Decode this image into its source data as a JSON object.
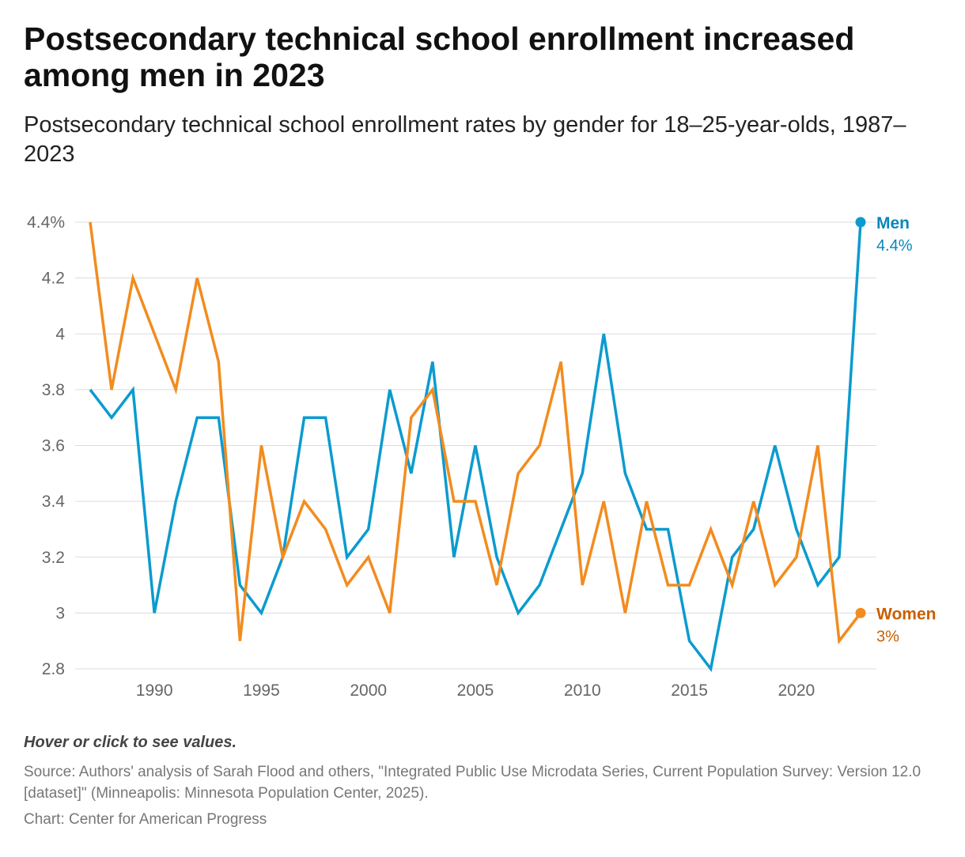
{
  "title": "Postsecondary technical school enrollment increased among men in 2023",
  "subtitle": "Postsecondary technical school enrollment rates by gender for 18–25-year-olds, 1987–2023",
  "hint": "Hover or click to see values.",
  "source": "Source: Authors' analysis of Sarah Flood and others, \"Integrated Public Use Microdata Series, Current Population Survey: Version 12.0 [dataset]\" (Minneapolis: Minnesota Population Center, 2025).",
  "credit": "Chart: Center for American Progress",
  "chart_data": {
    "type": "line",
    "x": [
      1987,
      1988,
      1989,
      1990,
      1991,
      1992,
      1993,
      1994,
      1995,
      1996,
      1997,
      1998,
      1999,
      2000,
      2001,
      2002,
      2003,
      2004,
      2005,
      2006,
      2007,
      2008,
      2009,
      2010,
      2011,
      2012,
      2013,
      2014,
      2015,
      2016,
      2017,
      2018,
      2019,
      2020,
      2021,
      2022,
      2023
    ],
    "series": [
      {
        "name": "Men",
        "end_label": "4.4%",
        "color": "#0b9bcf",
        "label_color": "#0a86b8",
        "values": [
          3.8,
          3.7,
          3.8,
          3.0,
          3.4,
          3.7,
          3.7,
          3.1,
          3.0,
          3.2,
          3.7,
          3.7,
          3.2,
          3.3,
          3.8,
          3.5,
          3.9,
          3.2,
          3.6,
          3.2,
          3.0,
          3.1,
          3.3,
          3.5,
          4.0,
          3.5,
          3.3,
          3.3,
          2.9,
          2.8,
          3.2,
          3.3,
          3.6,
          3.3,
          3.1,
          3.2,
          4.4
        ]
      },
      {
        "name": "Women",
        "end_label": "3%",
        "color": "#f28c1f",
        "label_color": "#c95f00",
        "values": [
          4.4,
          3.8,
          4.2,
          4.0,
          3.8,
          4.2,
          3.9,
          2.9,
          3.6,
          3.2,
          3.4,
          3.3,
          3.1,
          3.2,
          3.0,
          3.7,
          3.8,
          3.4,
          3.4,
          3.1,
          3.5,
          3.6,
          3.9,
          3.1,
          3.4,
          3.0,
          3.4,
          3.1,
          3.1,
          3.3,
          3.1,
          3.4,
          3.1,
          3.2,
          3.6,
          2.9,
          3.0
        ]
      }
    ],
    "y_ticks": [
      "4.4%",
      "4.2",
      "4",
      "3.8",
      "3.6",
      "3.4",
      "3.2",
      "3",
      "2.8"
    ],
    "y_tick_values": [
      4.4,
      4.2,
      4.0,
      3.8,
      3.6,
      3.4,
      3.2,
      3.0,
      2.8
    ],
    "x_ticks": [
      1990,
      1995,
      2000,
      2005,
      2010,
      2015,
      2020
    ],
    "ylim": [
      2.8,
      4.4
    ],
    "xlim": [
      1987,
      2023
    ],
    "grid": true,
    "legend": "end-of-line labels"
  }
}
